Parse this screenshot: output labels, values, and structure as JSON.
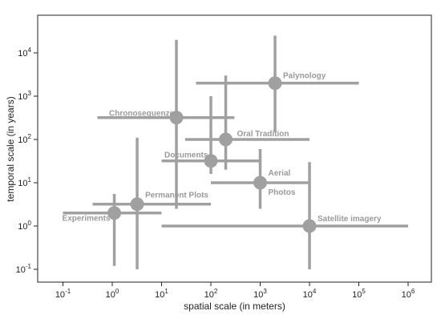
{
  "chart_data": {
    "type": "scatter",
    "title": "",
    "xlabel": "spatial scale (in meters)",
    "ylabel": "temporal scale (in years)",
    "x_scale": "log",
    "y_scale": "log",
    "xlim": [
      0.04,
      300000000
    ],
    "ylim": [
      0.05,
      50000
    ],
    "x_ticks": [
      {
        "base": "10",
        "exp": "-1",
        "value": 0.1
      },
      {
        "base": "10",
        "exp": "0",
        "value": 1
      },
      {
        "base": "10",
        "exp": "1",
        "value": 10
      },
      {
        "base": "10",
        "exp": "2",
        "value": 100
      },
      {
        "base": "10",
        "exp": "3",
        "value": 1000
      },
      {
        "base": "10",
        "exp": "4",
        "value": 10000
      },
      {
        "base": "10",
        "exp": "5",
        "value": 100000
      },
      {
        "base": "10",
        "exp": "6",
        "value": 1000000
      }
    ],
    "y_ticks": [
      {
        "base": "10",
        "exp": "-1",
        "value": 0.1
      },
      {
        "base": "10",
        "exp": "0",
        "value": 1
      },
      {
        "base": "10",
        "exp": "1",
        "value": 10
      },
      {
        "base": "10",
        "exp": "2",
        "value": 100
      },
      {
        "base": "10",
        "exp": "3",
        "value": 1000
      },
      {
        "base": "10",
        "exp": "4",
        "value": 10000
      }
    ],
    "grid": false,
    "legend": "none",
    "marker_color": "#a0a0a0",
    "points": [
      {
        "label": "Experiments",
        "x": 1.1,
        "y": 2.0,
        "xmin": 0.1,
        "xmax": 10,
        "ymin": 0.12,
        "ymax": 5.5
      },
      {
        "label": "Permanent Plots",
        "x": 3.2,
        "y": 3.2,
        "xmin": 0.4,
        "xmax": 100,
        "ymin": 0.1,
        "ymax": 110
      },
      {
        "label": "Documents",
        "x": 100,
        "y": 32,
        "xmin": 10,
        "xmax": 1000,
        "ymin": 16,
        "ymax": 1000
      },
      {
        "label": "Chronosequenzes",
        "x": 20,
        "y": 320,
        "xmin": 0.5,
        "xmax": 300,
        "ymin": 2.5,
        "ymax": 20000
      },
      {
        "label": "Oral Tradition",
        "x": 200,
        "y": 100,
        "xmin": 30,
        "xmax": 10000,
        "ymin": 20,
        "ymax": 3000
      },
      {
        "label": "Palynology",
        "x": 2000,
        "y": 2000,
        "xmin": 50,
        "xmax": 100000,
        "ymin": 150,
        "ymax": 25000
      },
      {
        "label_lines": [
          "Aerial",
          "Photos"
        ],
        "x": 1000,
        "y": 10,
        "xmin": 100,
        "xmax": 10000,
        "ymin": 2.5,
        "ymax": 60
      },
      {
        "label": "Satellite imagery",
        "x": 10000,
        "y": 1.0,
        "xmin": 10,
        "xmax": 1000000,
        "ymin": 0.1,
        "ymax": 30
      }
    ]
  }
}
